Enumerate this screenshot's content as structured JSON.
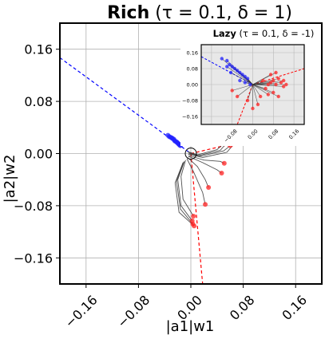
{
  "chart_data": {
    "type": "line",
    "title": {
      "bold": "Rich",
      "rest": " (τ = 0.1, δ = 1)"
    },
    "xlabel": "|a1|w1",
    "ylabel": "|a2|w2",
    "xlim": [
      -0.2,
      0.2
    ],
    "ylim": [
      -0.2,
      0.2
    ],
    "ticks": [
      -0.16,
      -0.08,
      0.0,
      0.08,
      0.16
    ],
    "tick_labels": [
      "−0.16",
      "−0.08",
      "0.00",
      "0.08",
      "0.16"
    ],
    "grid": true,
    "reference_lines": [
      {
        "color": "#0000ff",
        "style": "dashed",
        "points": [
          [
            -0.2,
            0.147
          ],
          [
            0.0,
            0.0
          ]
        ]
      },
      {
        "color": "#ff0000",
        "style": "dashed",
        "points": [
          [
            0.0,
            0.0
          ],
          [
            0.085,
            0.02
          ]
        ]
      },
      {
        "color": "#ff0000",
        "style": "dashed",
        "points": [
          [
            0.0,
            0.0
          ],
          [
            0.018,
            -0.2
          ]
        ]
      }
    ],
    "blue_points": [
      [
        -0.035,
        0.028
      ],
      [
        -0.033,
        0.026
      ],
      [
        -0.031,
        0.025
      ],
      [
        -0.029,
        0.024
      ],
      [
        -0.028,
        0.023
      ],
      [
        -0.026,
        0.022
      ],
      [
        -0.025,
        0.02
      ],
      [
        -0.024,
        0.019
      ],
      [
        -0.022,
        0.018
      ],
      [
        -0.021,
        0.017
      ],
      [
        -0.02,
        0.016
      ],
      [
        -0.019,
        0.015
      ],
      [
        -0.018,
        0.014
      ],
      [
        -0.017,
        0.013
      ],
      [
        -0.016,
        0.012
      ]
    ],
    "red_points": [
      [
        0.052,
        0.017
      ],
      [
        0.056,
        0.015
      ],
      [
        0.058,
        0.02
      ],
      [
        0.06,
        0.012
      ],
      [
        0.062,
        0.018
      ],
      [
        0.064,
        0.015
      ],
      [
        0.068,
        0.017
      ],
      [
        0.055,
        0.022
      ],
      [
        0.051,
        -0.015
      ],
      [
        0.047,
        -0.03
      ],
      [
        0.027,
        -0.052
      ],
      [
        0.022,
        -0.078
      ],
      [
        0.004,
        -0.096
      ],
      [
        0.002,
        -0.103
      ],
      [
        0.003,
        -0.108
      ],
      [
        0.005,
        -0.111
      ]
    ],
    "gray_trajectories": [
      [
        [
          -0.005,
          0.003
        ],
        [
          0.01,
          -0.002
        ],
        [
          0.04,
          0.006
        ],
        [
          0.052,
          0.017
        ]
      ],
      [
        [
          -0.004,
          0.002
        ],
        [
          0.012,
          -0.003
        ],
        [
          0.045,
          0.005
        ],
        [
          0.058,
          0.02
        ]
      ],
      [
        [
          -0.003,
          0.0
        ],
        [
          0.015,
          -0.004
        ],
        [
          0.05,
          0.004
        ],
        [
          0.064,
          0.015
        ]
      ],
      [
        [
          -0.004,
          -0.001
        ],
        [
          0.018,
          -0.006
        ],
        [
          0.055,
          0.002
        ],
        [
          0.068,
          0.017
        ]
      ],
      [
        [
          -0.003,
          -0.003
        ],
        [
          0.02,
          -0.01
        ],
        [
          0.045,
          -0.012
        ],
        [
          0.051,
          -0.015
        ]
      ],
      [
        [
          -0.004,
          -0.004
        ],
        [
          0.018,
          -0.014
        ],
        [
          0.04,
          -0.025
        ],
        [
          0.047,
          -0.03
        ]
      ],
      [
        [
          -0.005,
          -0.006
        ],
        [
          0.01,
          -0.02
        ],
        [
          0.022,
          -0.04
        ],
        [
          0.027,
          -0.052
        ]
      ],
      [
        [
          -0.006,
          -0.008
        ],
        [
          0.005,
          -0.03
        ],
        [
          0.018,
          -0.06
        ],
        [
          0.022,
          -0.078
        ]
      ],
      [
        [
          -0.008,
          -0.01
        ],
        [
          -0.015,
          -0.035
        ],
        [
          -0.012,
          -0.07
        ],
        [
          0.004,
          -0.096
        ]
      ],
      [
        [
          -0.01,
          -0.012
        ],
        [
          -0.02,
          -0.04
        ],
        [
          -0.015,
          -0.08
        ],
        [
          0.002,
          -0.103
        ]
      ],
      [
        [
          -0.011,
          -0.013
        ],
        [
          -0.022,
          -0.042
        ],
        [
          -0.016,
          -0.085
        ],
        [
          0.003,
          -0.108
        ]
      ],
      [
        [
          -0.012,
          -0.014
        ],
        [
          -0.024,
          -0.045
        ],
        [
          -0.018,
          -0.09
        ],
        [
          0.005,
          -0.111
        ]
      ]
    ],
    "inset": {
      "title": {
        "bold": "Lazy",
        "rest": " (τ = 0.1, δ = -1)"
      },
      "xlim": [
        -0.2,
        0.2
      ],
      "ylim": [
        -0.2,
        0.2
      ],
      "ticks": [
        -0.16,
        -0.08,
        0.0,
        0.08,
        0.16
      ],
      "y_tick_labels": [
        "0.16",
        "0.08",
        "0.00",
        "−0.08",
        "−0.16"
      ],
      "x_tick_labels": [
        "−0.08",
        "0.00",
        "0.08",
        "0.16"
      ],
      "x_tick_values": [
        -0.08,
        0.0,
        0.08,
        0.16
      ],
      "blue_points": [
        [
          -0.12,
          0.13
        ],
        [
          -0.1,
          0.12
        ],
        [
          -0.09,
          0.1
        ],
        [
          -0.08,
          0.09
        ],
        [
          -0.07,
          0.08
        ],
        [
          -0.06,
          0.07
        ],
        [
          -0.05,
          0.06
        ],
        [
          -0.04,
          0.05
        ],
        [
          -0.03,
          0.04
        ],
        [
          -0.1,
          0.09
        ],
        [
          -0.085,
          0.06
        ],
        [
          -0.05,
          0.02
        ],
        [
          -0.03,
          0.01
        ],
        [
          -0.01,
          0.0
        ],
        [
          -0.02,
          0.03
        ]
      ],
      "red_points": [
        [
          0.06,
          0.0
        ],
        [
          0.07,
          0.01
        ],
        [
          0.08,
          0.02
        ],
        [
          0.09,
          0.0
        ],
        [
          0.1,
          0.03
        ],
        [
          0.11,
          0.01
        ],
        [
          0.12,
          0.02
        ],
        [
          0.13,
          0.0
        ],
        [
          0.05,
          -0.02
        ],
        [
          0.06,
          -0.05
        ],
        [
          0.08,
          -0.04
        ],
        [
          0.03,
          -0.06
        ],
        [
          0.02,
          -0.1
        ],
        [
          0.0,
          -0.12
        ],
        [
          -0.02,
          -0.08
        ],
        [
          -0.06,
          -0.06
        ],
        [
          -0.08,
          -0.03
        ],
        [
          0.1,
          -0.06
        ],
        [
          0.12,
          -0.01
        ],
        [
          0.04,
          0.02
        ],
        [
          0.07,
          0.05
        ],
        [
          0.09,
          0.06
        ]
      ],
      "reference_lines": [
        {
          "color": "#0000ff",
          "style": "dashed",
          "points": [
            [
              -0.2,
              0.14
            ],
            [
              0.0,
              0.0
            ]
          ]
        },
        {
          "color": "#ff0000",
          "style": "dashed",
          "points": [
            [
              0.0,
              0.0
            ],
            [
              0.2,
              0.08
            ]
          ]
        },
        {
          "color": "#ff0000",
          "style": "dashed",
          "points": [
            [
              0.0,
              0.0
            ],
            [
              -0.06,
              -0.2
            ]
          ]
        }
      ]
    }
  }
}
